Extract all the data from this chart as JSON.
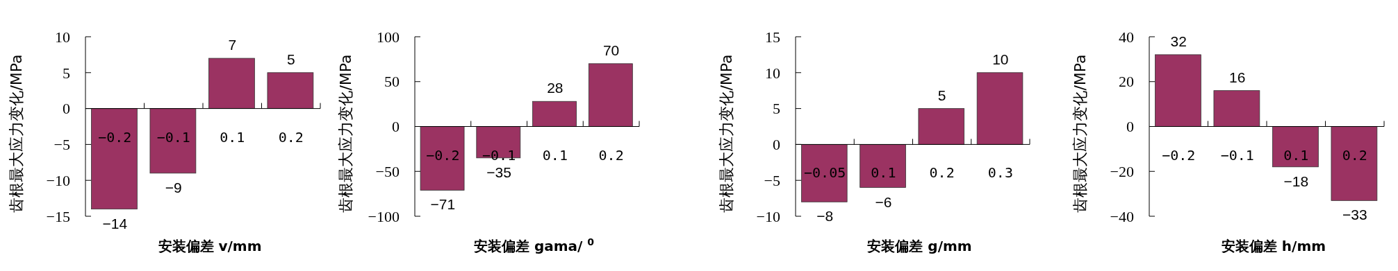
{
  "chart_data": [
    {
      "type": "bar",
      "categories": [
        "−0.2",
        "−0.1",
        "0.1",
        "0.2"
      ],
      "values": [
        -14,
        -9,
        7,
        5
      ],
      "color": "#9b3362",
      "ylim": [
        -15,
        10
      ],
      "yticks": [
        -15,
        -10,
        -5,
        0,
        5,
        10
      ],
      "ylabel": "齿根最大应力变化/MPa",
      "xlabel": "安装偏差 v/mm",
      "data_labels": true,
      "grid": false
    },
    {
      "type": "bar",
      "categories": [
        "−0.2",
        "−0.1",
        "0.1",
        "0.2"
      ],
      "values": [
        -71,
        -35,
        28,
        70
      ],
      "color": "#9b3362",
      "ylim": [
        -100,
        100
      ],
      "yticks": [
        -100,
        -50,
        0,
        50,
        100
      ],
      "ylabel": "齿根最大应力变化/MPa",
      "xlabel": "安装偏差 gama/ $^{0}$",
      "data_labels": true,
      "grid": false
    },
    {
      "type": "bar",
      "categories": [
        "−0.05",
        "0.1",
        "0.2",
        "0.3"
      ],
      "values": [
        -8,
        -6,
        5,
        10
      ],
      "color": "#9b3362",
      "ylim": [
        -10,
        15
      ],
      "yticks": [
        -10,
        -5,
        0,
        5,
        10,
        15
      ],
      "ylabel": "齿根最大应力变化/MPa",
      "xlabel": "安装偏差 g/mm",
      "data_labels": true,
      "grid": false
    },
    {
      "type": "bar",
      "categories": [
        "−0.2",
        "−0.1",
        "0.1",
        "0.2"
      ],
      "values": [
        32,
        16,
        -18,
        -33
      ],
      "color": "#9b3362",
      "ylim": [
        -40,
        40
      ],
      "yticks": [
        -40,
        -20,
        0,
        20,
        40
      ],
      "ylabel": "齿根最大应力变化/MPa",
      "xlabel": "安装偏差 h/mm",
      "data_labels": true,
      "grid": false
    }
  ]
}
